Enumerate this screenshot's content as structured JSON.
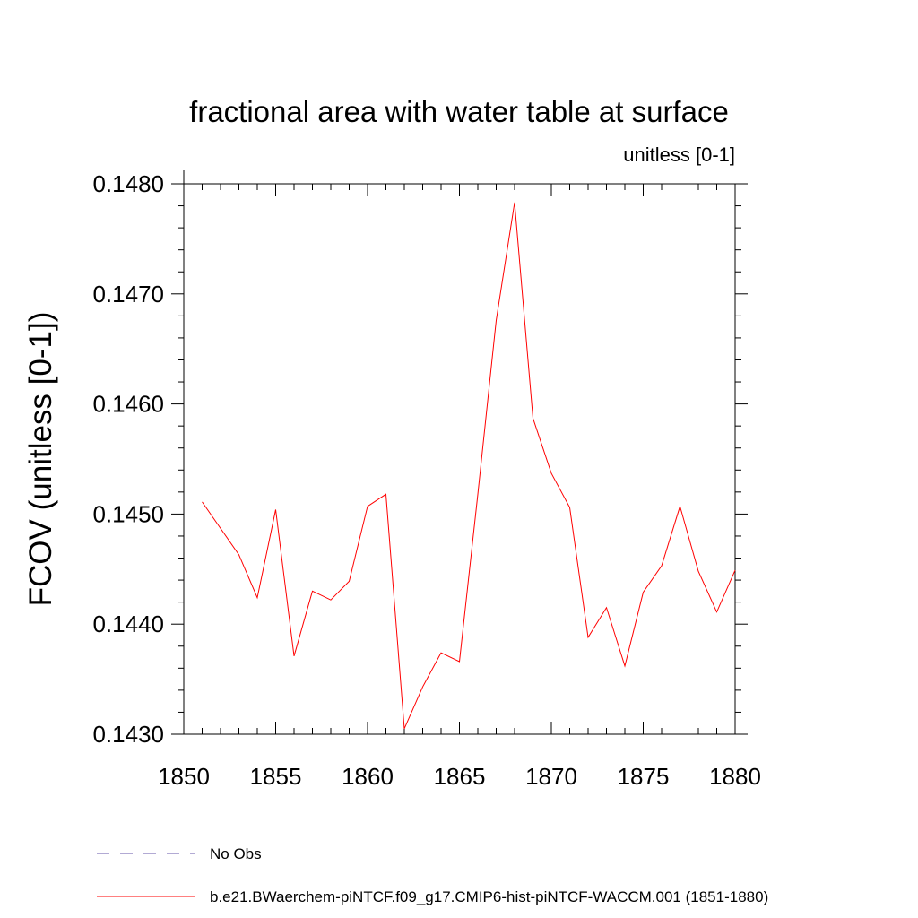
{
  "chart_data": {
    "type": "line",
    "title": "fractional area with water table at surface",
    "subtitle": "unitless [0-1]",
    "ylabel": "FCOV  (unitless [0-1])",
    "xlabel": "",
    "xlim": [
      1850,
      1880
    ],
    "ylim": [
      0.143,
      0.148
    ],
    "x_ticks": [
      "1850",
      "1855",
      "1860",
      "1865",
      "1870",
      "1875",
      "1880"
    ],
    "y_ticks": [
      "0.1430",
      "0.1440",
      "0.1450",
      "0.1460",
      "0.1470",
      "0.1480"
    ],
    "grid": false,
    "legend_position": "bottom",
    "series": [
      {
        "name": "b.e21.BWaerchem-piNTCF.f09_g17.CMIP6-hist-piNTCF-WACCM.001 (1851-1880)",
        "color": "#ff0000",
        "dash": "solid",
        "x": [
          1851,
          1852,
          1853,
          1854,
          1855,
          1856,
          1857,
          1858,
          1859,
          1860,
          1861,
          1862,
          1863,
          1864,
          1865,
          1866,
          1867,
          1868,
          1869,
          1870,
          1871,
          1872,
          1873,
          1874,
          1875,
          1876,
          1877,
          1878,
          1879,
          1880
        ],
        "values": [
          0.14511,
          0.14487,
          0.14463,
          0.14424,
          0.14504,
          0.14371,
          0.1443,
          0.14422,
          0.14439,
          0.14507,
          0.14518,
          0.14305,
          0.14343,
          0.14374,
          0.14366,
          0.14518,
          0.14676,
          0.14783,
          0.14587,
          0.14537,
          0.14506,
          0.14388,
          0.14415,
          0.14362,
          0.14429,
          0.14453,
          0.14507,
          0.14448,
          0.14411,
          0.14449
        ]
      },
      {
        "name": "No Obs",
        "color": "#6655aa",
        "dash": "dashed",
        "x": [],
        "values": []
      }
    ]
  }
}
